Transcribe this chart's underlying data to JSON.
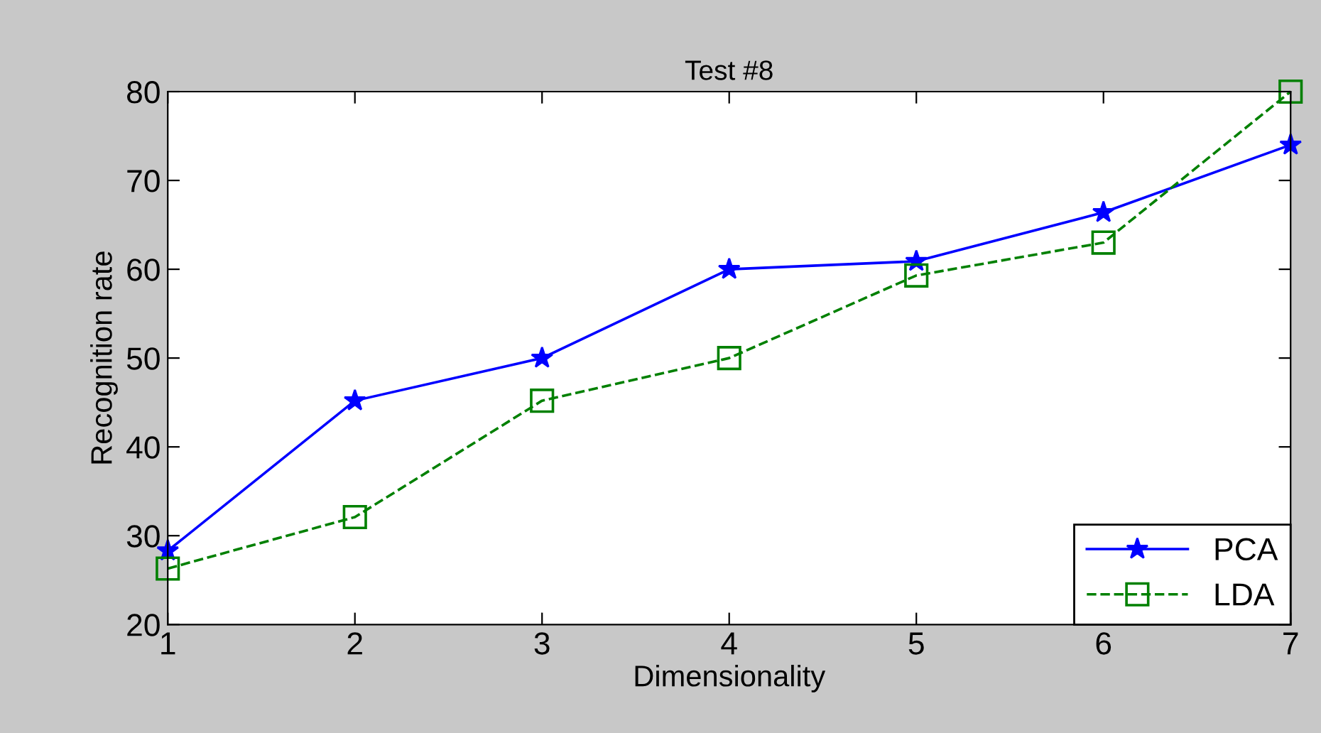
{
  "chart_data": {
    "type": "line",
    "title": "Test #8",
    "xlabel": "Dimensionality",
    "ylabel": "Recognition rate",
    "x": [
      1,
      2,
      3,
      4,
      5,
      6,
      7
    ],
    "series": [
      {
        "name": "PCA",
        "color": "#0000ff",
        "values": [
          28.3,
          45.2,
          50,
          60,
          60.9,
          66.4,
          74
        ],
        "marker": "star",
        "line_style": "solid"
      },
      {
        "name": "LDA",
        "color": "#008000",
        "values": [
          26.3,
          32.1,
          45.2,
          50,
          59.3,
          63,
          80
        ],
        "marker": "square",
        "line_style": "dashed"
      }
    ],
    "xlim": [
      1,
      7
    ],
    "xticks": [
      1,
      2,
      3,
      4,
      5,
      6,
      7
    ],
    "ylim": [
      20,
      80
    ],
    "yticks": [
      20,
      30,
      40,
      50,
      60,
      70,
      80
    ],
    "grid": false,
    "legend": "bottom right"
  }
}
